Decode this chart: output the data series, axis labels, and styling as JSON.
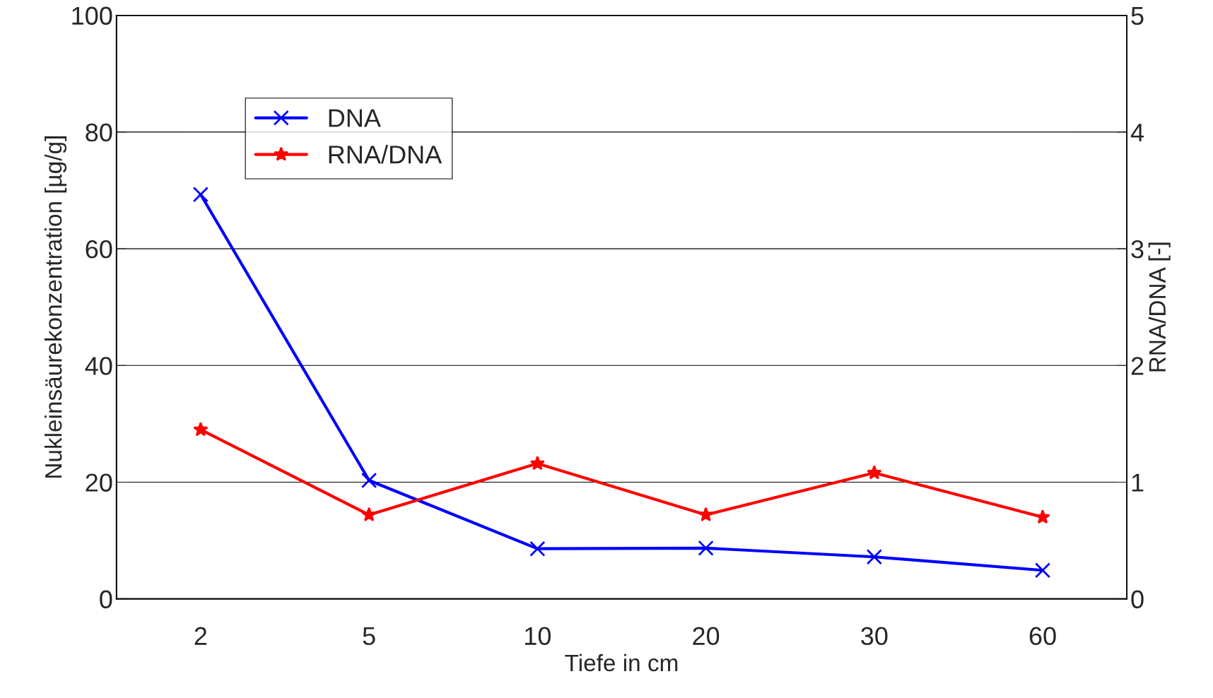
{
  "chart_data": {
    "type": "line",
    "xlabel": "Tiefe in cm",
    "ylabel": "Nukleinsäurekonzentration [µg/g]",
    "y2label": "RNA/DNA [-]",
    "categories": [
      "2",
      "5",
      "10",
      "20",
      "30",
      "60"
    ],
    "series": [
      {
        "name": "DNA",
        "color": "#0000ff",
        "marker": "cross",
        "values": [
          69.3,
          20.3,
          8.6,
          8.7,
          7.2,
          4.9
        ]
      },
      {
        "name": "RNA/DNA",
        "color": "#ff0000",
        "marker": "star",
        "axis": "y2",
        "values": [
          1.45,
          0.72,
          1.16,
          0.72,
          1.08,
          0.7
        ]
      }
    ],
    "ylim": [
      0,
      100
    ],
    "yticks": [
      0,
      20,
      40,
      60,
      80,
      100
    ],
    "y2lim": [
      0,
      5
    ],
    "y2ticks": [
      0,
      1,
      2,
      3,
      4,
      5
    ],
    "grid": "y",
    "legend": "top left",
    "line_style": "solid"
  }
}
